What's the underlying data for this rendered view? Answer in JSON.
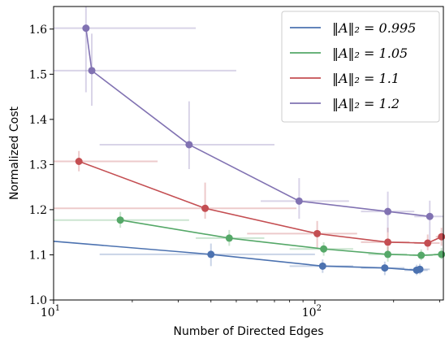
{
  "chart_data": {
    "type": "line",
    "xlabel": "Number of Directed Edges",
    "ylabel": "Normalized Cost",
    "xscale": "log",
    "xlim": [
      10,
      310
    ],
    "ylim": [
      1.0,
      1.65
    ],
    "x_ticks": [
      {
        "value": 10,
        "label": "10",
        "sup": "1"
      },
      {
        "value": 100,
        "label": "10",
        "sup": "2"
      }
    ],
    "y_ticks": [
      1.0,
      1.1,
      1.2,
      1.3,
      1.4,
      1.5,
      1.6
    ],
    "y_tick_labels": [
      "1.0",
      "1.1",
      "1.2",
      "1.3",
      "1.4",
      "1.5",
      "1.6"
    ],
    "grid": false,
    "legend": {
      "position": "top-right",
      "items": [
        {
          "label": "‖A‖₂ = 0.995",
          "color": "#4c72b0"
        },
        {
          "label": "‖A‖₂ = 1.05",
          "color": "#55a868"
        },
        {
          "label": "‖A‖₂ = 1.1",
          "color": "#c44e52"
        },
        {
          "label": "‖A‖₂ = 1.2",
          "color": "#8172b2"
        }
      ]
    },
    "series": [
      {
        "name": "‖A‖₂ = 0.995",
        "color": "#4c72b0",
        "line_x": [
          10,
          40,
          107,
          185,
          245,
          252
        ],
        "line_y": [
          1.13,
          1.101,
          1.075,
          1.071,
          1.066,
          1.068
        ],
        "points": [
          {
            "x": 40,
            "y": 1.101,
            "xerr": [
              15,
              100
            ],
            "yerr": [
              1.075,
              1.125
            ]
          },
          {
            "x": 107,
            "y": 1.075,
            "xerr": [
              80,
              140
            ],
            "yerr": [
              1.06,
              1.09
            ]
          },
          {
            "x": 185,
            "y": 1.071,
            "xerr": [
              150,
              220
            ],
            "yerr": [
              1.055,
              1.085
            ]
          },
          {
            "x": 245,
            "y": 1.066,
            "xerr": [
              220,
              270
            ],
            "yerr": [
              1.055,
              1.078
            ]
          },
          {
            "x": 252,
            "y": 1.068,
            "xerr": [
              230,
              275
            ],
            "yerr": [
              1.057,
              1.08
            ]
          }
        ]
      },
      {
        "name": "‖A‖₂ = 1.05",
        "color": "#55a868",
        "line_x": [
          18,
          47,
          108,
          190,
          255,
          305
        ],
        "line_y": [
          1.177,
          1.137,
          1.113,
          1.101,
          1.099,
          1.101
        ],
        "points": [
          {
            "x": 18,
            "y": 1.177,
            "xerr": [
              10,
              33
            ],
            "yerr": [
              1.16,
              1.195
            ]
          },
          {
            "x": 47,
            "y": 1.137,
            "xerr": [
              35,
              64
            ],
            "yerr": [
              1.12,
              1.155
            ]
          },
          {
            "x": 108,
            "y": 1.113,
            "xerr": [
              80,
              140
            ],
            "yerr": [
              1.098,
              1.128
            ]
          },
          {
            "x": 190,
            "y": 1.101,
            "xerr": [
              160,
              225
            ],
            "yerr": [
              1.085,
              1.118
            ]
          },
          {
            "x": 255,
            "y": 1.099,
            "xerr": [
              230,
              282
            ],
            "yerr": [
              1.088,
              1.112
            ]
          },
          {
            "x": 305,
            "y": 1.101,
            "xerr": [
              285,
              320
            ],
            "yerr": [
              1.09,
              1.115
            ]
          }
        ]
      },
      {
        "name": "‖A‖₂ = 1.1",
        "color": "#c44e52",
        "line_x": [
          12.5,
          38,
          102,
          190,
          270,
          305
        ],
        "line_y": [
          1.307,
          1.203,
          1.147,
          1.128,
          1.126,
          1.14
        ],
        "points": [
          {
            "x": 12.5,
            "y": 1.307,
            "xerr": [
              10,
              25
            ],
            "yerr": [
              1.285,
              1.33
            ]
          },
          {
            "x": 38,
            "y": 1.203,
            "xerr": [
              10,
              85
            ],
            "yerr": [
              1.18,
              1.26
            ]
          },
          {
            "x": 102,
            "y": 1.147,
            "xerr": [
              55,
              145
            ],
            "yerr": [
              1.115,
              1.175
            ]
          },
          {
            "x": 190,
            "y": 1.128,
            "xerr": [
              150,
              230
            ],
            "yerr": [
              1.1,
              1.16
            ]
          },
          {
            "x": 270,
            "y": 1.126,
            "xerr": [
              240,
              300
            ],
            "yerr": [
              1.11,
              1.145
            ]
          },
          {
            "x": 305,
            "y": 1.14,
            "xerr": [
              290,
              320
            ],
            "yerr": [
              1.12,
              1.16
            ]
          }
        ]
      },
      {
        "name": "‖A‖₂ = 1.2",
        "color": "#8172b2",
        "line_x": [
          13.3,
          14,
          33,
          87,
          190,
          275
        ],
        "line_y": [
          1.602,
          1.508,
          1.344,
          1.219,
          1.196,
          1.185
        ],
        "points": [
          {
            "x": 13.3,
            "y": 1.602,
            "xerr": [
              10,
              35
            ],
            "yerr": [
              1.46,
              1.65
            ]
          },
          {
            "x": 14,
            "y": 1.508,
            "xerr": [
              10,
              50
            ],
            "yerr": [
              1.43,
              1.59
            ]
          },
          {
            "x": 33,
            "y": 1.344,
            "xerr": [
              15,
              70
            ],
            "yerr": [
              1.29,
              1.44
            ]
          },
          {
            "x": 87,
            "y": 1.219,
            "xerr": [
              62,
              135
            ],
            "yerr": [
              1.18,
              1.27
            ]
          },
          {
            "x": 190,
            "y": 1.196,
            "xerr": [
              150,
              240
            ],
            "yerr": [
              1.15,
              1.24
            ]
          },
          {
            "x": 275,
            "y": 1.185,
            "xerr": [
              240,
              315
            ],
            "yerr": [
              1.13,
              1.22
            ]
          }
        ]
      }
    ]
  }
}
